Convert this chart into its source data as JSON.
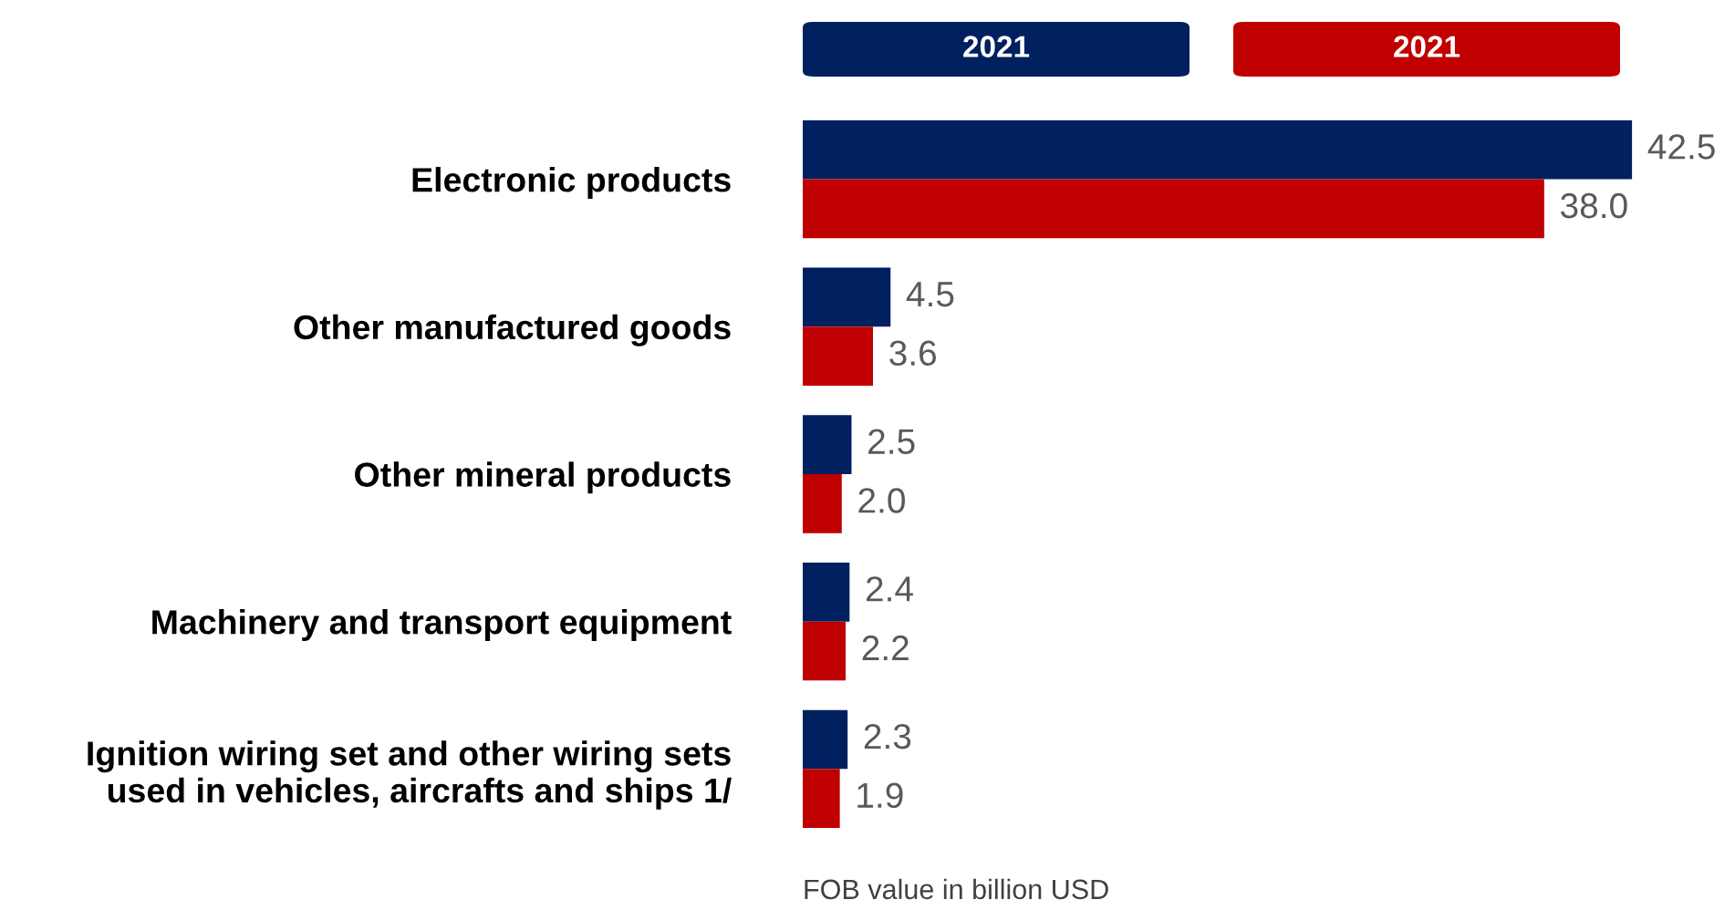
{
  "chart_data": {
    "type": "bar",
    "orientation": "horizontal",
    "legend": "top",
    "categories": [
      "Electronic products",
      "Other manufactured goods",
      "Other mineral products",
      "Machinery and transport equipment",
      "Ignition wiring set and other wiring sets\nused in vehicles, aircrafts and ships 1/"
    ],
    "series": [
      {
        "name": "2021",
        "color": "#002060",
        "values": [
          42.5,
          4.5,
          2.5,
          2.4,
          2.3
        ],
        "value_labels": [
          "42.5",
          "4.5",
          "2.5",
          "2.4",
          "2.3"
        ]
      },
      {
        "name": "2021",
        "color": "#c00000",
        "values": [
          38.0,
          3.6,
          2.0,
          2.2,
          1.9
        ],
        "value_labels": [
          "38.0",
          "3.6",
          "2.0",
          "2.2",
          "1.9"
        ]
      }
    ],
    "annotations": [
      "FOB value in billion USD"
    ]
  }
}
